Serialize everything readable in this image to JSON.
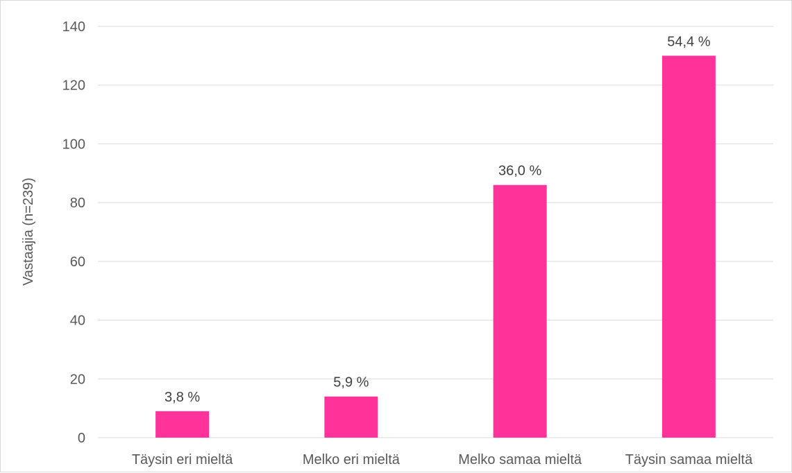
{
  "chart_data": {
    "type": "bar",
    "categories": [
      "Täysin eri mieltä",
      "Melko eri mieltä",
      "Melko samaa mieltä",
      "Täysin samaa mieltä"
    ],
    "values": [
      9,
      14,
      86,
      130
    ],
    "data_labels": [
      "3,8 %",
      "5,9 %",
      "36,0 %",
      "54,4 %"
    ],
    "title": "",
    "xlabel": "",
    "ylabel": "Vastaajia (n=239)",
    "ylim": [
      0,
      140
    ],
    "yticks": [
      0,
      20,
      40,
      60,
      80,
      100,
      120,
      140
    ],
    "grid": true,
    "legend": "none",
    "bar_color": "#ff3399",
    "grid_color": "#d9d9d9"
  }
}
